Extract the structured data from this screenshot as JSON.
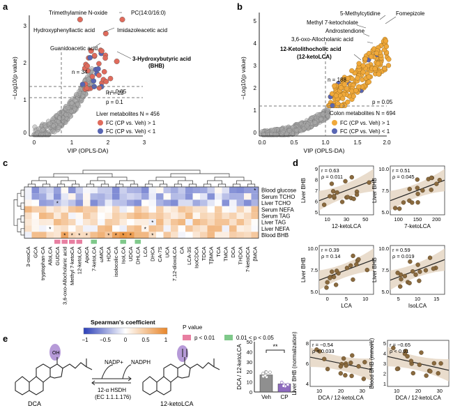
{
  "panels": {
    "a": {
      "letter": "a",
      "xlabel": "VIP (OPLS-DA)",
      "ylabel": "−Log10(p value)",
      "xticks": [
        "0",
        "1",
        "2",
        "3"
      ],
      "yticks": [
        "0",
        "1",
        "2",
        "3"
      ],
      "p_lines": [
        "p = 0.05",
        "p = 0.1"
      ],
      "counts": [
        "n = 34",
        "n = 23"
      ],
      "labels": [
        "Trimethylamine N-oxide",
        "PC(14:0/16:0)",
        "Hydroxyphenyllactic acid",
        "Imidazoleacetic acid",
        "Guanidoacetic acid",
        "3-Hydroxybutyric acid",
        "(BHB)"
      ],
      "legend_title": "Liver metabolites N = 456",
      "legend_up": "FC (CP vs. Veh) > 1",
      "legend_down": "FC (CP vs. Veh) < 1",
      "colors": {
        "up": "#e06b5c",
        "down": "#5866b4",
        "ns": "#a9a9a9"
      }
    },
    "b": {
      "letter": "b",
      "xlabel": "VIP (OPLS-DA)",
      "ylabel": "−Log10(p value)",
      "xticks": [
        "0.0",
        "0.5",
        "1.0",
        "1.5",
        "2.0"
      ],
      "yticks": [
        "0",
        "1",
        "2",
        "3",
        "4",
        "5"
      ],
      "p_line": "p = 0.05",
      "count": "n = 188",
      "labels": [
        "5-Methylcytidine",
        "Fomepizole",
        "Methyl 7-ketocholate",
        "Androstendione",
        "3,6-oxo-Allocholanic acid",
        "12-Ketolithocholic acid",
        "(12-ketoLCA)"
      ],
      "legend_title": "Colon metabolites N = 694",
      "legend_up": "FC (CP vs. Veh) > 1",
      "legend_down": "FC (CP vs. Veh) < 1",
      "colors": {
        "up": "#f0a93b",
        "down": "#5866b4",
        "ns": "#a9a9a9"
      }
    },
    "c": {
      "letter": "c",
      "rows": [
        "Blood glucose",
        "Serum TCHO",
        "Liver TCHO",
        "Serum NEFA",
        "Serum TAG",
        "Liver TAG",
        "Liver NEFA",
        "Blood BHB"
      ],
      "cols": [
        "3-oxoCA",
        "GCA",
        "tryptophan-CA",
        "AlloLCA",
        "GUDCA",
        "3,6-oxo-Allocholanic acid",
        "Methyl 7-ketoCA",
        "12-ketoLCA",
        "ApoCA",
        "7-ketoLCA",
        "ωMCA",
        "HDCA",
        "isolocolic-CA",
        "IsoLCA",
        "UDCA",
        "DHLCA",
        "LCA",
        "DHCA",
        "CA-7S",
        "UCA",
        "7,12-dioxoLCA",
        "CA",
        "LCA-3S",
        "IsoCDCA",
        "TDCA",
        "TβMCA",
        "TCA",
        "TMCA",
        "DCA",
        "THDCA",
        "7-ketoDCA",
        "βMCA"
      ],
      "legend_title": "Spearman's coefficient",
      "scale_ticks": [
        "−1",
        "−0.5",
        "0",
        "0.5",
        "1"
      ],
      "pvalue_title": "P value",
      "p_strong": "p < 0.01",
      "p_weak": "0.01 < p < 0.05",
      "colors": {
        "neg": "#2b3fb8",
        "pos": "#e8862a",
        "strong": "#e87fa1",
        "weak": "#7fc98a"
      }
    },
    "d": {
      "letter": "d",
      "plots": [
        {
          "xlabel": "12-ketoLCA",
          "ylabel": "Liver BHB",
          "r": "r = 0.63",
          "p": "ρ = 0.011",
          "xticks": [
            "10",
            "30",
            "50"
          ],
          "yticks": [
            "5",
            "6",
            "7",
            "8",
            "9"
          ]
        },
        {
          "xlabel": "7-ketoLCA",
          "ylabel": "Liver BHB",
          "r": "r = 0.51",
          "p": "ρ = 0.045",
          "xticks": [
            "100",
            "150",
            "200"
          ],
          "yticks": [
            "5.0",
            "7.5",
            "10.0"
          ]
        },
        {
          "xlabel": "LCA",
          "ylabel": "Liver BHB",
          "r": "r = 0.39",
          "p": "ρ = 0.14",
          "xticks": [
            "0",
            "5",
            "10"
          ],
          "yticks": [
            "5.0",
            "7.5",
            "10.0"
          ]
        },
        {
          "xlabel": "IsoLCA",
          "ylabel": "Liver BHB",
          "r": "r = 0.59",
          "p": "ρ = 0.019",
          "xticks": [
            "5",
            "10",
            "15"
          ],
          "yticks": [
            "5.0",
            "7.5",
            "10.0"
          ]
        }
      ],
      "colors": {
        "dot": "#8a6a3e",
        "band": "#e5d6c3"
      }
    },
    "e": {
      "letter": "e",
      "dca": "DCA",
      "ketolca": "12-ketoLCA",
      "nadp": "NADP+",
      "nadph": "NADPH",
      "enzyme": "12-α HSDH",
      "ec": "(EC 1.1.1.176)",
      "oh": "OH",
      "bar": {
        "ylabel": "DCA / 12-ketoLCA",
        "yticks": [
          "0",
          "10",
          "20",
          "30",
          "40",
          "50"
        ],
        "categories": [
          "Veh",
          "CP"
        ],
        "sig": "**"
      },
      "scatter": [
        {
          "ylabel": "Liver BHB (normalization)",
          "xlabel": "DCA / 12-ketoLCA",
          "r": "r = −0.54",
          "p": "ρ = 0.033",
          "xticks": [
            "10",
            "20",
            "30"
          ],
          "yticks": [
            "4",
            "6",
            "8"
          ]
        },
        {
          "ylabel": "Blood BHB (mmol/L)",
          "xlabel": "DCA / 12-ketoLCA",
          "r": "r = −0.65",
          "p": "ρ < 0.01",
          "xticks": [
            "10",
            "20",
            "30"
          ],
          "yticks": [
            "1",
            "2",
            "3",
            "4",
            "5"
          ]
        }
      ],
      "colors": {
        "veh": "#8f8f8f",
        "cp": "#8e6bbf",
        "highlight": "#b69ad8"
      }
    }
  }
}
